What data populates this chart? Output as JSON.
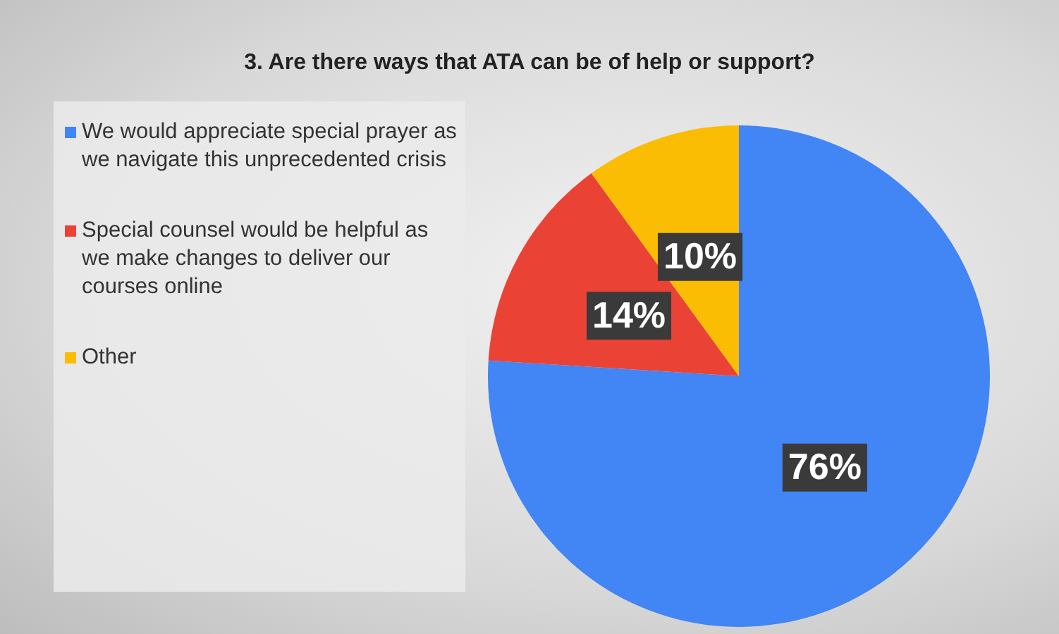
{
  "chart_data": {
    "type": "pie",
    "title": "3.  Are there ways that ATA can be of help or support?",
    "categories": [
      "We would appreciate special prayer as we navigate this unprecedented crisis",
      "Special counsel would be helpful as we make changes to deliver our courses online",
      "Other"
    ],
    "values": [
      76,
      14,
      10
    ],
    "colors": [
      "#4285f4",
      "#ea4335",
      "#fbbc04"
    ],
    "value_labels": [
      "76%",
      "14%",
      "10%"
    ],
    "legend": "left"
  }
}
